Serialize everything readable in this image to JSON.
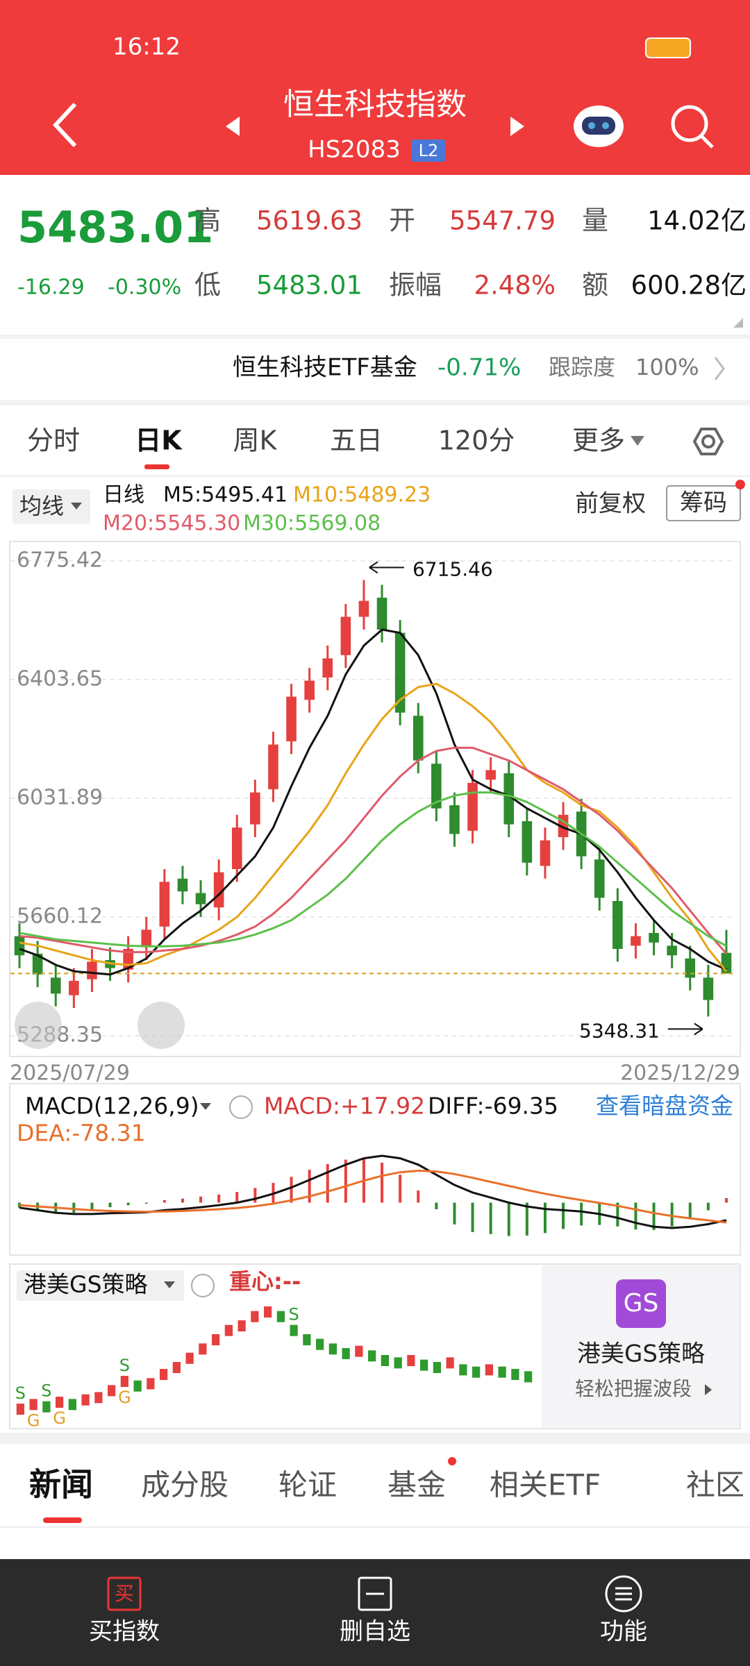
{
  "status_bar": {
    "time": "16:12"
  },
  "header": {
    "title": "恒生科技指数",
    "code": "HS2083",
    "badge": "L2"
  },
  "quote": {
    "price": "5483.01",
    "change": "-16.29",
    "change_pct": "-0.30%",
    "fields": [
      {
        "label": "高",
        "value": "5619.63",
        "color": "#d63a3a"
      },
      {
        "label": "开",
        "value": "5547.79",
        "color": "#d63a3a"
      },
      {
        "label": "量",
        "value": "14.02亿",
        "color": "#111111"
      },
      {
        "label": "低",
        "value": "5483.01",
        "color": "#1a9c3a"
      },
      {
        "label": "振幅",
        "value": "2.48%",
        "color": "#d63a3a"
      },
      {
        "label": "额",
        "value": "600.28亿",
        "color": "#111111"
      }
    ]
  },
  "etf": {
    "name": "恒生科技ETF基金",
    "change": "-0.71%",
    "tracking_label": "跟踪度",
    "tracking": "100%"
  },
  "period_tabs": [
    "分时",
    "日K",
    "周K",
    "五日",
    "120分",
    "更多"
  ],
  "ma_legend": {
    "selector": "均线",
    "period": "日线",
    "adjust": "前复权",
    "chips": "筹码"
  },
  "chart": {
    "type": "candlestick",
    "up_color": "#e5403f",
    "down_color": "#2e8b2e",
    "grid": true,
    "ylim": [
      5223,
      6836
    ],
    "yticks": [
      6775.42,
      6403.65,
      6031.89,
      5660.12,
      5288.35
    ],
    "x_labels": [
      "2025/07/29",
      "2025/12/29"
    ],
    "open": [
      5600,
      5545,
      5470,
      5415,
      5465,
      5525,
      5495,
      5565,
      5630,
      5780,
      5735,
      5690,
      5810,
      5950,
      6060,
      6210,
      6340,
      6410,
      6480,
      6600,
      6660,
      6550,
      6290,
      6140,
      6010,
      5930,
      6090,
      6110,
      5960,
      5820,
      5910,
      5990,
      5840,
      5710,
      5570,
      5610,
      5570,
      5530,
      5470,
      5547.79
    ],
    "high": [
      5640,
      5585,
      5510,
      5500,
      5560,
      5565,
      5600,
      5660,
      5810,
      5820,
      5775,
      5840,
      5980,
      6090,
      6240,
      6390,
      6440,
      6510,
      6640,
      6715.46,
      6700,
      6590,
      6330,
      6180,
      6050,
      6120,
      6160,
      6150,
      6000,
      5940,
      6020,
      6030,
      5880,
      5750,
      5640,
      5650,
      5610,
      5570,
      5510,
      5619.63
    ],
    "low": [
      5500,
      5440,
      5380,
      5375,
      5425,
      5460,
      5455,
      5525,
      5590,
      5700,
      5660,
      5650,
      5770,
      5910,
      6020,
      6170,
      6300,
      6370,
      6440,
      6560,
      6520,
      6260,
      6110,
      5960,
      5880,
      5890,
      6050,
      5910,
      5790,
      5780,
      5870,
      5810,
      5680,
      5520,
      5530,
      5540,
      5500,
      5430,
      5348.31,
      5483.01
    ],
    "close": [
      5540,
      5480,
      5420,
      5460,
      5520,
      5500,
      5560,
      5620,
      5770,
      5740,
      5700,
      5800,
      5940,
      6050,
      6200,
      6350,
      6400,
      6470,
      6600,
      6650,
      6560,
      6300,
      6150,
      6000,
      5920,
      6080,
      6120,
      5950,
      5830,
      5900,
      5980,
      5850,
      5720,
      5560,
      5600,
      5580,
      5540,
      5470,
      5400,
      5483.01
    ],
    "ma": [
      {
        "name": "M5:5495.41",
        "color": "#111111",
        "values": [
          5560,
          5540,
          5510,
          5490,
          5485,
          5480,
          5500,
          5530,
          5590,
          5640,
          5680,
          5730,
          5790,
          5850,
          5940,
          6070,
          6190,
          6290,
          6420,
          6510,
          6560,
          6550,
          6480,
          6360,
          6200,
          6090,
          6060,
          6040,
          6000,
          5970,
          5940,
          5920,
          5870,
          5800,
          5720,
          5650,
          5590,
          5560,
          5520,
          5495.41
        ]
      },
      {
        "name": "M10:5489.23",
        "color": "#e8a317",
        "values": [
          5580,
          5570,
          5555,
          5540,
          5525,
          5515,
          5510,
          5515,
          5540,
          5560,
          5590,
          5620,
          5660,
          5720,
          5790,
          5860,
          5930,
          6010,
          6110,
          6200,
          6280,
          6340,
          6380,
          6390,
          6360,
          6320,
          6270,
          6200,
          6120,
          6080,
          6050,
          6010,
          5990,
          5940,
          5880,
          5800,
          5720,
          5650,
          5560,
          5489.23
        ]
      },
      {
        "name": "M20:5545.30",
        "color": "#e05a6a",
        "values": [
          5600,
          5595,
          5585,
          5575,
          5565,
          5555,
          5550,
          5550,
          5555,
          5560,
          5570,
          5585,
          5605,
          5630,
          5670,
          5720,
          5780,
          5840,
          5900,
          5970,
          6040,
          6100,
          6150,
          6180,
          6190,
          6190,
          6170,
          6150,
          6120,
          6090,
          6060,
          6020,
          5980,
          5930,
          5870,
          5810,
          5750,
          5680,
          5610,
          5545.3
        ]
      },
      {
        "name": "M30:5569.08",
        "color": "#5cbf4a",
        "values": [
          5610,
          5600,
          5590,
          5585,
          5580,
          5575,
          5570,
          5568,
          5568,
          5570,
          5575,
          5580,
          5590,
          5605,
          5625,
          5650,
          5690,
          5730,
          5780,
          5840,
          5900,
          5950,
          5990,
          6020,
          6040,
          6050,
          6050,
          6040,
          6020,
          5990,
          5960,
          5920,
          5880,
          5830,
          5780,
          5730,
          5680,
          5640,
          5600,
          5569.08
        ]
      }
    ]
  },
  "macd": {
    "title": "MACD(12,26,9)",
    "macd_label": "MACD:+17.92",
    "diff_label": "DIFF:-69.35",
    "dea_label": "DEA:-78.31",
    "link": "查看暗盘资金",
    "diff_color": "#111111",
    "dea_color": "#e8702a",
    "up_color": "#e5403f",
    "down_color": "#2e8b2e",
    "hist": [
      -20,
      -30,
      -40,
      -40,
      -30,
      -18,
      -10,
      -4,
      10,
      16,
      24,
      32,
      42,
      58,
      78,
      102,
      130,
      152,
      170,
      176,
      158,
      110,
      48,
      -26,
      -86,
      -116,
      -124,
      -132,
      -130,
      -120,
      -104,
      -90,
      -88,
      -94,
      -106,
      -108,
      -94,
      -66,
      -30,
      17.92
    ],
    "diff": [
      -20,
      -30,
      -40,
      -45,
      -45,
      -42,
      -40,
      -38,
      -30,
      -25,
      -18,
      -10,
      0,
      15,
      35,
      60,
      90,
      120,
      150,
      175,
      185,
      175,
      150,
      110,
      70,
      40,
      20,
      0,
      -15,
      -25,
      -30,
      -35,
      -45,
      -60,
      -80,
      -95,
      -100,
      -95,
      -85,
      -69.35
    ],
    "dea": [
      -10,
      -15,
      -20,
      -25,
      -30,
      -33,
      -35,
      -36,
      -35,
      -33,
      -30,
      -26,
      -21,
      -14,
      -4,
      9,
      25,
      44,
      65,
      87,
      106,
      120,
      126,
      123,
      113,
      98,
      82,
      66,
      50,
      35,
      22,
      10,
      -1,
      -13,
      -27,
      -41,
      -53,
      -62,
      -70,
      -78.31
    ]
  },
  "gs": {
    "title": "港美GS策略",
    "center_label": "重心:--",
    "up_color": "#e5403f",
    "down_color": "#2e9b2e",
    "values": [
      10,
      12,
      11,
      13,
      12,
      14,
      15,
      18,
      22,
      20,
      21,
      25,
      28,
      32,
      36,
      40,
      44,
      46,
      50,
      52,
      50,
      44,
      40,
      38,
      36,
      34,
      35,
      33,
      31,
      30,
      31,
      29,
      28,
      30,
      27,
      26,
      27,
      26,
      25,
      24
    ],
    "signals": [
      {
        "index": 0,
        "label": "S"
      },
      {
        "index": 1,
        "label": "G"
      },
      {
        "index": 2,
        "label": "S"
      },
      {
        "index": 3,
        "label": "G"
      },
      {
        "index": 8,
        "label": "S"
      },
      {
        "index": 8,
        "label": "G"
      },
      {
        "index": 21,
        "label": "S"
      }
    ],
    "ad": {
      "badge": "GS",
      "title": "港美GS策略",
      "subtitle": "轻松把握波段"
    }
  },
  "content_tabs": [
    "新闻",
    "成分股",
    "轮证",
    "基金",
    "相关ETF",
    "社区"
  ],
  "nav": [
    {
      "icon": "买",
      "label": "买指数"
    },
    {
      "label": "删自选"
    },
    {
      "label": "功能"
    }
  ]
}
